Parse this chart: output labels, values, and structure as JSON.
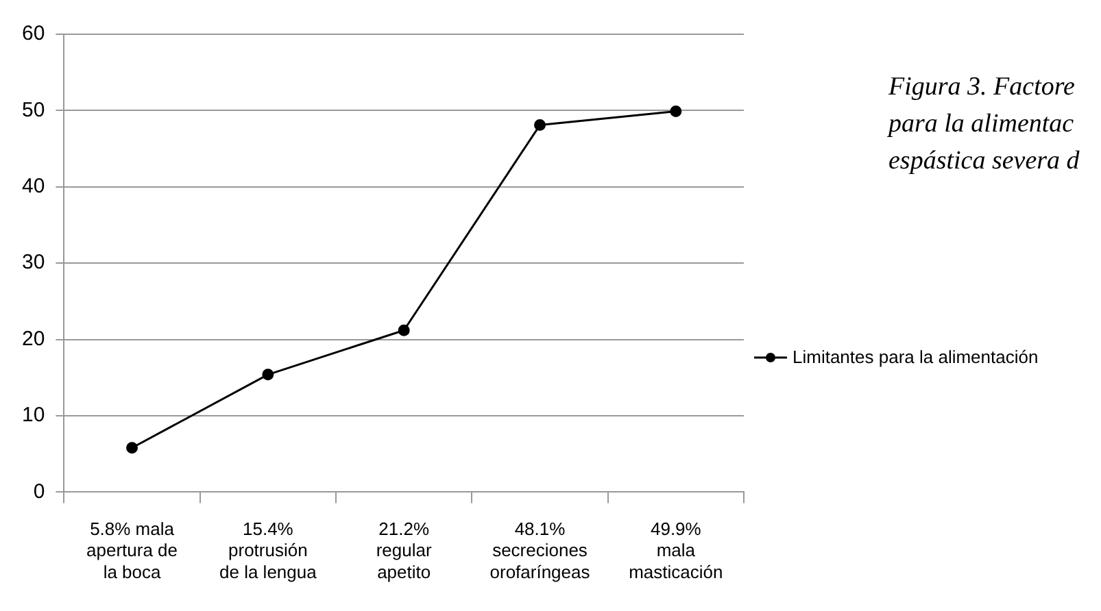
{
  "chart_data": {
    "type": "line",
    "annotations": [
      "Figura 3. Factore",
      "para la alimentac",
      "espástica severa d"
    ],
    "categories": [
      "5.8% mala\napertura de\nla boca",
      "15.4%\nprotrusión\nde la lengua",
      "21.2%\nregular\napetito",
      "48.1%\nsecreciones\norofaríngeas",
      "49.9%\nmala\nmasticación"
    ],
    "series": [
      {
        "name": "Limitantes para la alimentación",
        "color": "#000000",
        "values": [
          5.8,
          15.4,
          21.2,
          48.1,
          49.9
        ]
      }
    ],
    "ylim": [
      0,
      60
    ],
    "yticks": [
      0,
      10,
      20,
      30,
      40,
      50,
      60
    ],
    "grid": "y",
    "legend": "right",
    "marker": "circle"
  }
}
